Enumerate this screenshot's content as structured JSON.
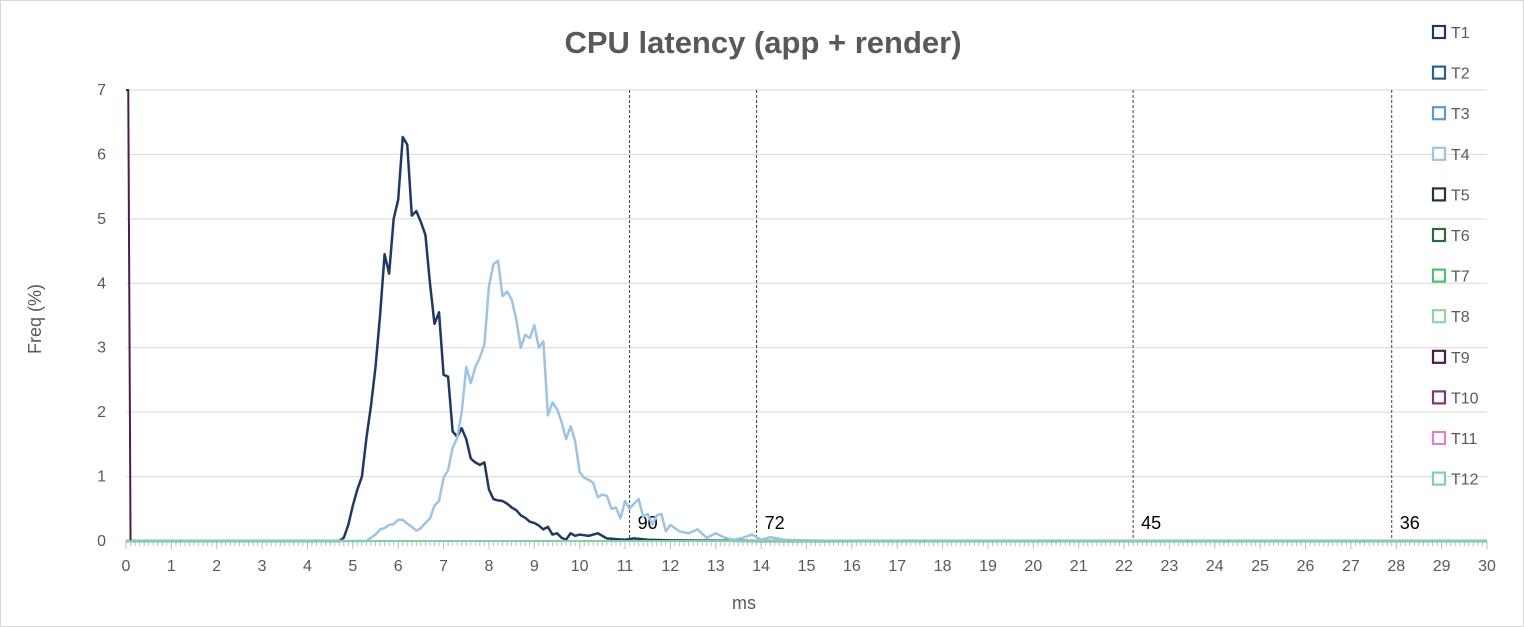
{
  "chart_data": {
    "type": "line",
    "title": "CPU latency (app + render)",
    "xlabel": "ms",
    "ylabel": "Freq (%)",
    "xlim": [
      0,
      30
    ],
    "ylim": [
      0,
      7
    ],
    "x_ticks": [
      "0",
      "1",
      "2",
      "3",
      "4",
      "5",
      "6",
      "7",
      "8",
      "9",
      "10",
      "11",
      "12",
      "13",
      "14",
      "15",
      "16",
      "17",
      "18",
      "19",
      "20",
      "21",
      "22",
      "23",
      "24",
      "25",
      "26",
      "27",
      "28",
      "29",
      "30"
    ],
    "y_ticks": [
      "0",
      "1",
      "2",
      "3",
      "4",
      "5",
      "6",
      "7"
    ],
    "grid": "horizontal",
    "legend": "right",
    "series": [
      {
        "name": "T1",
        "color": "#203864",
        "points": [
          [
            0,
            0
          ],
          [
            4.7,
            0
          ],
          [
            4.8,
            0.05
          ],
          [
            4.9,
            0.25
          ],
          [
            5.0,
            0.55
          ],
          [
            5.1,
            0.8
          ],
          [
            5.2,
            1.0
          ],
          [
            5.3,
            1.6
          ],
          [
            5.4,
            2.1
          ],
          [
            5.5,
            2.7
          ],
          [
            5.6,
            3.5
          ],
          [
            5.7,
            4.45
          ],
          [
            5.8,
            4.15
          ],
          [
            5.9,
            5.0
          ],
          [
            6.0,
            5.3
          ],
          [
            6.1,
            6.27
          ],
          [
            6.2,
            6.15
          ],
          [
            6.3,
            5.05
          ],
          [
            6.4,
            5.12
          ],
          [
            6.5,
            4.95
          ],
          [
            6.6,
            4.75
          ],
          [
            6.7,
            4.0
          ],
          [
            6.8,
            3.37
          ],
          [
            6.9,
            3.55
          ],
          [
            7.0,
            2.58
          ],
          [
            7.1,
            2.55
          ],
          [
            7.2,
            1.7
          ],
          [
            7.3,
            1.62
          ],
          [
            7.4,
            1.75
          ],
          [
            7.5,
            1.58
          ],
          [
            7.6,
            1.28
          ],
          [
            7.7,
            1.22
          ],
          [
            7.8,
            1.18
          ],
          [
            7.9,
            1.22
          ],
          [
            8.0,
            0.8
          ],
          [
            8.1,
            0.65
          ],
          [
            8.2,
            0.63
          ],
          [
            8.3,
            0.62
          ],
          [
            8.4,
            0.58
          ],
          [
            8.5,
            0.52
          ],
          [
            8.6,
            0.48
          ],
          [
            8.7,
            0.4
          ],
          [
            8.8,
            0.36
          ],
          [
            8.9,
            0.3
          ],
          [
            9.0,
            0.28
          ],
          [
            9.1,
            0.24
          ],
          [
            9.2,
            0.18
          ],
          [
            9.3,
            0.22
          ],
          [
            9.4,
            0.1
          ],
          [
            9.5,
            0.12
          ],
          [
            9.6,
            0.05
          ],
          [
            9.7,
            0.02
          ],
          [
            9.8,
            0.12
          ],
          [
            9.9,
            0.08
          ],
          [
            10.0,
            0.1
          ],
          [
            10.2,
            0.08
          ],
          [
            10.4,
            0.12
          ],
          [
            10.6,
            0.04
          ],
          [
            10.8,
            0.03
          ],
          [
            11.0,
            0.02
          ],
          [
            11.2,
            0.04
          ],
          [
            11.5,
            0.02
          ],
          [
            12.0,
            0.01
          ],
          [
            14.0,
            0
          ],
          [
            30,
            0
          ]
        ]
      },
      {
        "name": "T2",
        "color": "#2e5f8a",
        "points": [
          [
            0,
            0
          ],
          [
            30,
            0
          ]
        ]
      },
      {
        "name": "T3",
        "color": "#5b9bd5",
        "points": [
          [
            0,
            0
          ],
          [
            30,
            0
          ]
        ]
      },
      {
        "name": "T4",
        "color": "#9dc3e6",
        "points": [
          [
            0,
            0
          ],
          [
            5.3,
            0
          ],
          [
            5.5,
            0.1
          ],
          [
            5.6,
            0.18
          ],
          [
            5.7,
            0.2
          ],
          [
            5.8,
            0.25
          ],
          [
            5.9,
            0.26
          ],
          [
            6.0,
            0.33
          ],
          [
            6.1,
            0.33
          ],
          [
            6.2,
            0.27
          ],
          [
            6.3,
            0.22
          ],
          [
            6.4,
            0.16
          ],
          [
            6.5,
            0.2
          ],
          [
            6.6,
            0.28
          ],
          [
            6.7,
            0.35
          ],
          [
            6.8,
            0.55
          ],
          [
            6.9,
            0.62
          ],
          [
            7.0,
            0.98
          ],
          [
            7.1,
            1.1
          ],
          [
            7.2,
            1.45
          ],
          [
            7.3,
            1.6
          ],
          [
            7.4,
            2.0
          ],
          [
            7.5,
            2.7
          ],
          [
            7.6,
            2.45
          ],
          [
            7.7,
            2.7
          ],
          [
            7.8,
            2.85
          ],
          [
            7.9,
            3.05
          ],
          [
            8.0,
            3.95
          ],
          [
            8.1,
            4.3
          ],
          [
            8.2,
            4.35
          ],
          [
            8.3,
            3.8
          ],
          [
            8.4,
            3.87
          ],
          [
            8.5,
            3.75
          ],
          [
            8.6,
            3.45
          ],
          [
            8.7,
            3.0
          ],
          [
            8.8,
            3.2
          ],
          [
            8.9,
            3.15
          ],
          [
            9.0,
            3.35
          ],
          [
            9.1,
            3.0
          ],
          [
            9.2,
            3.1
          ],
          [
            9.3,
            1.95
          ],
          [
            9.4,
            2.15
          ],
          [
            9.5,
            2.05
          ],
          [
            9.6,
            1.85
          ],
          [
            9.7,
            1.58
          ],
          [
            9.8,
            1.78
          ],
          [
            9.9,
            1.55
          ],
          [
            10.0,
            1.07
          ],
          [
            10.1,
            0.98
          ],
          [
            10.2,
            0.95
          ],
          [
            10.3,
            0.9
          ],
          [
            10.4,
            0.68
          ],
          [
            10.5,
            0.72
          ],
          [
            10.6,
            0.7
          ],
          [
            10.7,
            0.5
          ],
          [
            10.8,
            0.52
          ],
          [
            10.9,
            0.35
          ],
          [
            11.0,
            0.62
          ],
          [
            11.1,
            0.5
          ],
          [
            11.2,
            0.58
          ],
          [
            11.3,
            0.65
          ],
          [
            11.4,
            0.38
          ],
          [
            11.5,
            0.42
          ],
          [
            11.6,
            0.25
          ],
          [
            11.7,
            0.4
          ],
          [
            11.8,
            0.42
          ],
          [
            11.9,
            0.15
          ],
          [
            12.0,
            0.25
          ],
          [
            12.2,
            0.15
          ],
          [
            12.4,
            0.12
          ],
          [
            12.6,
            0.18
          ],
          [
            12.8,
            0.05
          ],
          [
            13.0,
            0.12
          ],
          [
            13.2,
            0.05
          ],
          [
            13.4,
            0.02
          ],
          [
            13.6,
            0.05
          ],
          [
            13.8,
            0.1
          ],
          [
            14.0,
            0.02
          ],
          [
            14.2,
            0.06
          ],
          [
            14.5,
            0.02
          ],
          [
            15.0,
            0.01
          ],
          [
            16.0,
            0
          ],
          [
            30,
            0
          ]
        ]
      },
      {
        "name": "T5",
        "color": "#1e3d20",
        "points": [
          [
            0,
            0
          ],
          [
            30,
            0
          ]
        ]
      },
      {
        "name": "T6",
        "color": "#2d6a3a",
        "points": [
          [
            0,
            0
          ],
          [
            30,
            0
          ]
        ]
      },
      {
        "name": "T7",
        "color": "#4fc06a",
        "points": [
          [
            0,
            0
          ],
          [
            30,
            0
          ]
        ]
      },
      {
        "name": "T8",
        "color": "#8fd6a0",
        "points": [
          [
            0,
            0
          ],
          [
            30,
            0
          ]
        ]
      },
      {
        "name": "T9",
        "color": "#4a1d4a",
        "points": [
          [
            0,
            7
          ],
          [
            0.05,
            7
          ],
          [
            0.1,
            0
          ],
          [
            30,
            0
          ]
        ]
      },
      {
        "name": "T10",
        "color": "#7a3a7a",
        "points": [
          [
            0,
            0
          ],
          [
            24.2,
            0
          ],
          [
            30,
            0
          ]
        ]
      },
      {
        "name": "T11",
        "color": "#e07fd0",
        "points": [
          [
            0,
            0
          ],
          [
            30,
            0
          ]
        ]
      },
      {
        "name": "T12",
        "color": "#7dd3a6",
        "points": [
          [
            0,
            0
          ],
          [
            30,
            0
          ]
        ]
      }
    ],
    "markers": [
      {
        "x": 11.1,
        "label": "90"
      },
      {
        "x": 13.9,
        "label": "72"
      },
      {
        "x": 22.2,
        "label": "45"
      },
      {
        "x": 27.9,
        "label": "36"
      }
    ]
  }
}
